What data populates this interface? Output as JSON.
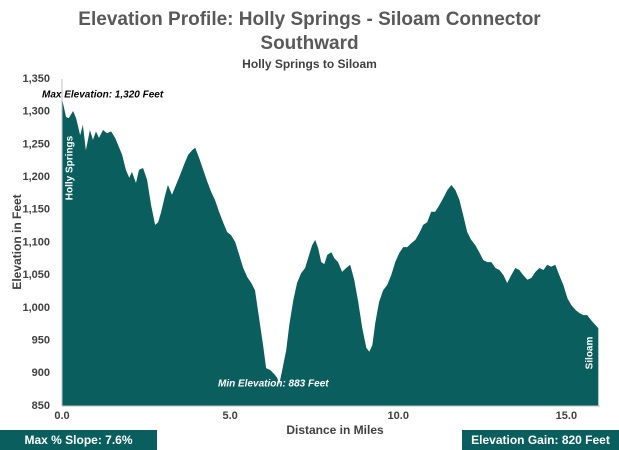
{
  "chart_data": {
    "type": "area",
    "title": "Elevation Profile: Holly Springs - Siloam Connector Southward",
    "subtitle": "Holly Springs to Siloam",
    "x_label": "Distance in Miles",
    "y_label": "Elevation in Feet",
    "color": "#0b5e5e",
    "x": [
      0,
      0.12,
      0.2,
      0.33,
      0.42,
      0.54,
      0.62,
      0.71,
      0.83,
      0.92,
      1.01,
      1.1,
      1.22,
      1.34,
      1.46,
      1.58,
      1.7,
      1.79,
      1.9,
      2.0,
      2.08,
      2.2,
      2.29,
      2.41,
      2.53,
      2.65,
      2.77,
      2.86,
      2.95,
      3.07,
      3.15,
      3.27,
      3.39,
      3.51,
      3.63,
      3.75,
      3.87,
      3.96,
      4.08,
      4.2,
      4.32,
      4.44,
      4.55,
      4.67,
      4.79,
      4.91,
      5.03,
      5.15,
      5.27,
      5.39,
      5.51,
      5.63,
      5.74,
      5.86,
      5.98,
      6.07,
      6.19,
      6.31,
      6.4,
      6.46,
      6.55,
      6.67,
      6.76,
      6.88,
      6.99,
      7.11,
      7.23,
      7.35,
      7.44,
      7.53,
      7.62,
      7.71,
      7.8,
      7.89,
      8.01,
      8.1,
      8.21,
      8.33,
      8.45,
      8.57,
      8.69,
      8.81,
      8.93,
      9.05,
      9.14,
      9.23,
      9.32,
      9.43,
      9.55,
      9.67,
      9.79,
      9.91,
      10.03,
      10.15,
      10.27,
      10.39,
      10.51,
      10.63,
      10.74,
      10.86,
      10.98,
      11.1,
      11.22,
      11.34,
      11.46,
      11.58,
      11.7,
      11.82,
      11.93,
      12.05,
      12.17,
      12.29,
      12.41,
      12.53,
      12.65,
      12.77,
      12.89,
      13.01,
      13.13,
      13.24,
      13.36,
      13.48,
      13.6,
      13.72,
      13.84,
      13.96,
      14.08,
      14.2,
      14.32,
      14.43,
      14.55,
      14.67,
      14.79,
      14.91,
      15.03,
      15.15,
      15.27,
      15.39,
      15.51,
      15.62,
      15.74,
      15.86,
      15.95
    ],
    "values": [
      1320,
      1292,
      1290,
      1301,
      1290,
      1264,
      1280,
      1241,
      1272,
      1257,
      1270,
      1260,
      1272,
      1267,
      1270,
      1260,
      1245,
      1234,
      1211,
      1199,
      1208,
      1191,
      1211,
      1214,
      1196,
      1157,
      1127,
      1131,
      1147,
      1173,
      1188,
      1173,
      1188,
      1203,
      1219,
      1234,
      1241,
      1245,
      1229,
      1211,
      1193,
      1177,
      1165,
      1147,
      1131,
      1116,
      1111,
      1101,
      1081,
      1061,
      1047,
      1038,
      1027,
      985,
      943,
      908,
      905,
      899,
      893,
      883,
      905,
      936,
      974,
      1012,
      1038,
      1053,
      1061,
      1081,
      1096,
      1104,
      1091,
      1070,
      1067,
      1081,
      1085,
      1076,
      1070,
      1055,
      1061,
      1066,
      1043,
      1009,
      969,
      939,
      933,
      943,
      978,
      1009,
      1027,
      1035,
      1050,
      1070,
      1084,
      1093,
      1093,
      1099,
      1104,
      1115,
      1127,
      1131,
      1147,
      1147,
      1157,
      1168,
      1180,
      1188,
      1180,
      1165,
      1142,
      1116,
      1104,
      1096,
      1085,
      1073,
      1070,
      1070,
      1061,
      1058,
      1050,
      1038,
      1050,
      1061,
      1058,
      1050,
      1043,
      1046,
      1055,
      1061,
      1058,
      1066,
      1063,
      1066,
      1050,
      1035,
      1015,
      1004,
      997,
      992,
      989,
      989,
      981,
      974,
      969
    ],
    "xlim": [
      0,
      16
    ],
    "ylim": [
      850,
      1350
    ],
    "xticks": [
      {
        "value": 0,
        "label": "0.0"
      },
      {
        "value": 5,
        "label": "5.0"
      },
      {
        "value": 10,
        "label": "10.0"
      },
      {
        "value": 15,
        "label": "15.0"
      }
    ],
    "yticks": [
      850,
      900,
      950,
      {
        "value": 1000,
        "label": "1,000"
      },
      {
        "value": 1050,
        "label": "1,050"
      },
      {
        "value": 1100,
        "label": "1,100"
      },
      {
        "value": 1150,
        "label": "1,150"
      },
      {
        "value": 1200,
        "label": "1,200"
      },
      {
        "value": 1250,
        "label": "1,250"
      },
      {
        "value": 1300,
        "label": "1,300"
      },
      {
        "value": 1350,
        "label": "1,350"
      }
    ],
    "grid": false,
    "annotations": [
      "Max Elevation: 1,320 Feet",
      "Min Elevation: 883 Feet",
      "Holly Springs",
      "Siloam"
    ],
    "stats": [
      "Max % Slope: 7.6%",
      "Elevation Gain: 820 Feet"
    ]
  }
}
